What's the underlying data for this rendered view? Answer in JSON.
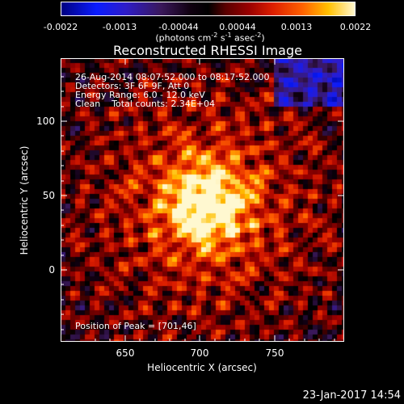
{
  "colorbar": {
    "ticks": [
      "-0.0022",
      "-0.0013",
      "-0.00044",
      "0.00044",
      "0.0013",
      "0.0022"
    ],
    "units_prefix": "(photons cm",
    "units_sup1": "-2",
    "units_mid": " s",
    "units_sup2": "-1",
    "units_mid2": " asec",
    "units_sup3": "-2",
    "units_suffix": ")"
  },
  "plot": {
    "title": "Reconstructed RHESSI Image",
    "annotations": {
      "line1": "26-Aug-2014 08:07:52.000 to 08:17:52.000",
      "line2": "Detectors: 3F 6F 9F, Att 0",
      "line3": "Energy Range: 6.0 - 12.0 keV",
      "line4": "Clean    Total counts: 2.34E+04",
      "peak": "Position of Peak = [701,46]"
    },
    "peak": {
      "x": 701,
      "y": 46
    }
  },
  "axes": {
    "xlabel": "Heliocentric X (arcsec)",
    "ylabel": "Heliocentric Y (arcsec)",
    "xticks": [
      "650",
      "700",
      "750"
    ],
    "yticks": [
      "100",
      "50",
      "0"
    ],
    "xrange": [
      605,
      795
    ],
    "yrange": [
      -48,
      142
    ]
  },
  "footer": {
    "timestamp": "23-Jan-2017 14:54"
  }
}
